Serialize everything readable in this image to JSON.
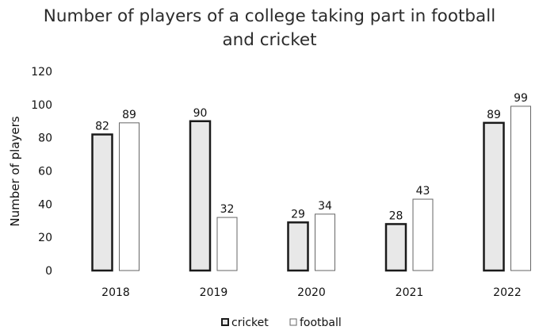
{
  "chart_data": {
    "type": "bar",
    "title": "Number of players of a college taking part in football and cricket",
    "xlabel": "",
    "ylabel": "Number of players",
    "categories": [
      "2018",
      "2019",
      "2020",
      "2021",
      "2022"
    ],
    "series": [
      {
        "name": "cricket",
        "values": [
          82,
          90,
          29,
          28,
          89
        ],
        "fill": "#e8e8e8",
        "stroke": "#1a1a1a"
      },
      {
        "name": "football",
        "values": [
          89,
          32,
          34,
          43,
          99
        ],
        "fill": "#ffffff",
        "stroke": "#666666"
      }
    ],
    "ylim": [
      0,
      120
    ],
    "yticks": [
      0,
      20,
      40,
      60,
      80,
      100,
      120
    ],
    "grid": false,
    "legend_position": "bottom"
  }
}
